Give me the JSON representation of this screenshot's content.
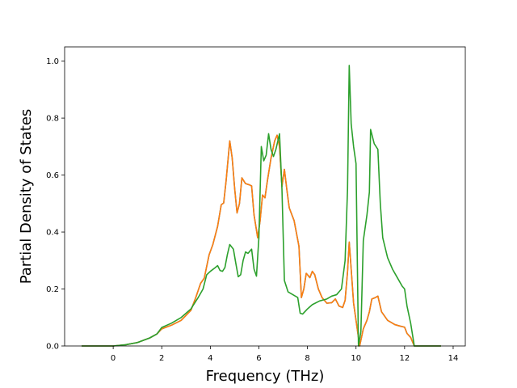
{
  "chart_data": {
    "type": "line",
    "title": "",
    "xlabel": "Frequency (THz)",
    "ylabel": "Partial Density of States",
    "xlim": [
      -2.0,
      14.5
    ],
    "ylim": [
      0.0,
      1.05
    ],
    "xticks": [
      0,
      2,
      4,
      6,
      8,
      10,
      12,
      14
    ],
    "yticks": [
      0.0,
      0.2,
      0.4,
      0.6,
      0.8,
      1.0
    ],
    "x_tick_labels": [
      "0",
      "2",
      "4",
      "6",
      "8",
      "10",
      "12",
      "14"
    ],
    "y_tick_labels": [
      "0.0",
      "0.2",
      "0.4",
      "0.6",
      "0.8",
      "1.0"
    ],
    "grid": false,
    "legend": "none",
    "series": [
      {
        "color": "#1f77b4",
        "points": [
          [
            -1.3,
            0
          ],
          [
            0,
            0
          ],
          [
            0.5,
            0.004
          ],
          [
            1.0,
            0.012
          ],
          [
            1.5,
            0.028
          ],
          [
            1.8,
            0.042
          ],
          [
            2.0,
            0.06
          ],
          [
            2.4,
            0.073
          ],
          [
            2.8,
            0.09
          ],
          [
            3.2,
            0.125
          ],
          [
            3.4,
            0.17
          ],
          [
            3.6,
            0.22
          ],
          [
            3.75,
            0.238
          ],
          [
            3.95,
            0.32
          ],
          [
            4.1,
            0.355
          ],
          [
            4.3,
            0.42
          ],
          [
            4.45,
            0.496
          ],
          [
            4.55,
            0.502
          ],
          [
            4.65,
            0.58
          ],
          [
            4.8,
            0.72
          ],
          [
            4.9,
            0.66
          ],
          [
            5.0,
            0.555
          ],
          [
            5.1,
            0.467
          ],
          [
            5.2,
            0.5
          ],
          [
            5.3,
            0.59
          ],
          [
            5.45,
            0.57
          ],
          [
            5.6,
            0.566
          ],
          [
            5.7,
            0.562
          ],
          [
            5.8,
            0.46
          ],
          [
            5.95,
            0.38
          ],
          [
            6.05,
            0.44
          ],
          [
            6.15,
            0.53
          ],
          [
            6.25,
            0.52
          ],
          [
            6.35,
            0.58
          ],
          [
            6.5,
            0.66
          ],
          [
            6.65,
            0.72
          ],
          [
            6.75,
            0.74
          ],
          [
            6.85,
            0.7
          ],
          [
            6.95,
            0.56
          ],
          [
            7.05,
            0.62
          ],
          [
            7.15,
            0.55
          ],
          [
            7.25,
            0.485
          ],
          [
            7.45,
            0.44
          ],
          [
            7.65,
            0.35
          ],
          [
            7.75,
            0.17
          ],
          [
            7.85,
            0.2
          ],
          [
            7.95,
            0.255
          ],
          [
            8.1,
            0.24
          ],
          [
            8.2,
            0.262
          ],
          [
            8.3,
            0.25
          ],
          [
            8.45,
            0.2
          ],
          [
            8.6,
            0.17
          ],
          [
            8.8,
            0.15
          ],
          [
            9.0,
            0.152
          ],
          [
            9.15,
            0.165
          ],
          [
            9.3,
            0.14
          ],
          [
            9.45,
            0.135
          ],
          [
            9.55,
            0.16
          ],
          [
            9.65,
            0.26
          ],
          [
            9.72,
            0.365
          ],
          [
            9.8,
            0.27
          ],
          [
            9.9,
            0.15
          ],
          [
            10.05,
            0.06
          ],
          [
            10.15,
            0.0
          ],
          [
            10.3,
            0.06
          ],
          [
            10.45,
            0.09
          ],
          [
            10.55,
            0.12
          ],
          [
            10.65,
            0.165
          ],
          [
            10.8,
            0.17
          ],
          [
            10.9,
            0.175
          ],
          [
            11.05,
            0.12
          ],
          [
            11.3,
            0.09
          ],
          [
            11.6,
            0.075
          ],
          [
            11.8,
            0.07
          ],
          [
            12.0,
            0.066
          ],
          [
            12.1,
            0.044
          ],
          [
            12.25,
            0.03
          ],
          [
            12.4,
            0.0
          ],
          [
            13.5,
            0.0
          ]
        ]
      },
      {
        "color": "#ff7f0e",
        "points": [
          [
            -1.3,
            0
          ],
          [
            0,
            0
          ],
          [
            0.5,
            0.004
          ],
          [
            1.0,
            0.012
          ],
          [
            1.5,
            0.028
          ],
          [
            1.8,
            0.042
          ],
          [
            2.0,
            0.06
          ],
          [
            2.4,
            0.073
          ],
          [
            2.8,
            0.09
          ],
          [
            3.2,
            0.125
          ],
          [
            3.4,
            0.17
          ],
          [
            3.6,
            0.22
          ],
          [
            3.75,
            0.238
          ],
          [
            3.95,
            0.32
          ],
          [
            4.1,
            0.355
          ],
          [
            4.3,
            0.42
          ],
          [
            4.45,
            0.496
          ],
          [
            4.55,
            0.502
          ],
          [
            4.65,
            0.58
          ],
          [
            4.8,
            0.72
          ],
          [
            4.9,
            0.66
          ],
          [
            5.0,
            0.555
          ],
          [
            5.1,
            0.467
          ],
          [
            5.2,
            0.5
          ],
          [
            5.3,
            0.59
          ],
          [
            5.45,
            0.57
          ],
          [
            5.6,
            0.566
          ],
          [
            5.7,
            0.562
          ],
          [
            5.8,
            0.46
          ],
          [
            5.95,
            0.38
          ],
          [
            6.05,
            0.44
          ],
          [
            6.15,
            0.53
          ],
          [
            6.25,
            0.52
          ],
          [
            6.35,
            0.58
          ],
          [
            6.5,
            0.66
          ],
          [
            6.65,
            0.72
          ],
          [
            6.75,
            0.74
          ],
          [
            6.85,
            0.7
          ],
          [
            6.95,
            0.56
          ],
          [
            7.05,
            0.62
          ],
          [
            7.15,
            0.55
          ],
          [
            7.25,
            0.485
          ],
          [
            7.45,
            0.44
          ],
          [
            7.65,
            0.35
          ],
          [
            7.75,
            0.17
          ],
          [
            7.85,
            0.2
          ],
          [
            7.95,
            0.255
          ],
          [
            8.1,
            0.24
          ],
          [
            8.2,
            0.262
          ],
          [
            8.3,
            0.25
          ],
          [
            8.45,
            0.2
          ],
          [
            8.6,
            0.17
          ],
          [
            8.8,
            0.15
          ],
          [
            9.0,
            0.152
          ],
          [
            9.15,
            0.165
          ],
          [
            9.3,
            0.14
          ],
          [
            9.45,
            0.135
          ],
          [
            9.55,
            0.16
          ],
          [
            9.65,
            0.26
          ],
          [
            9.72,
            0.365
          ],
          [
            9.8,
            0.27
          ],
          [
            9.9,
            0.15
          ],
          [
            10.05,
            0.06
          ],
          [
            10.15,
            0.0
          ],
          [
            10.3,
            0.06
          ],
          [
            10.45,
            0.09
          ],
          [
            10.55,
            0.12
          ],
          [
            10.65,
            0.165
          ],
          [
            10.8,
            0.17
          ],
          [
            10.9,
            0.175
          ],
          [
            11.05,
            0.12
          ],
          [
            11.3,
            0.09
          ],
          [
            11.6,
            0.075
          ],
          [
            11.8,
            0.07
          ],
          [
            12.0,
            0.066
          ],
          [
            12.1,
            0.044
          ],
          [
            12.25,
            0.03
          ],
          [
            12.4,
            0.0
          ],
          [
            13.5,
            0.0
          ]
        ]
      },
      {
        "color": "#2ca02c",
        "points": [
          [
            -1.3,
            0
          ],
          [
            0,
            0
          ],
          [
            0.5,
            0.004
          ],
          [
            1.0,
            0.012
          ],
          [
            1.5,
            0.028
          ],
          [
            1.8,
            0.042
          ],
          [
            2.0,
            0.065
          ],
          [
            2.4,
            0.08
          ],
          [
            2.8,
            0.1
          ],
          [
            3.2,
            0.13
          ],
          [
            3.5,
            0.17
          ],
          [
            3.7,
            0.2
          ],
          [
            3.85,
            0.25
          ],
          [
            4.0,
            0.262
          ],
          [
            4.2,
            0.275
          ],
          [
            4.3,
            0.282
          ],
          [
            4.4,
            0.265
          ],
          [
            4.5,
            0.262
          ],
          [
            4.6,
            0.275
          ],
          [
            4.7,
            0.32
          ],
          [
            4.8,
            0.356
          ],
          [
            4.95,
            0.34
          ],
          [
            5.05,
            0.29
          ],
          [
            5.15,
            0.243
          ],
          [
            5.25,
            0.25
          ],
          [
            5.35,
            0.3
          ],
          [
            5.45,
            0.33
          ],
          [
            5.55,
            0.325
          ],
          [
            5.7,
            0.34
          ],
          [
            5.8,
            0.27
          ],
          [
            5.9,
            0.245
          ],
          [
            6.0,
            0.38
          ],
          [
            6.1,
            0.7
          ],
          [
            6.2,
            0.65
          ],
          [
            6.3,
            0.67
          ],
          [
            6.4,
            0.745
          ],
          [
            6.5,
            0.69
          ],
          [
            6.6,
            0.665
          ],
          [
            6.7,
            0.69
          ],
          [
            6.85,
            0.745
          ],
          [
            6.95,
            0.55
          ],
          [
            7.05,
            0.23
          ],
          [
            7.2,
            0.19
          ],
          [
            7.4,
            0.18
          ],
          [
            7.6,
            0.17
          ],
          [
            7.7,
            0.115
          ],
          [
            7.8,
            0.112
          ],
          [
            8.0,
            0.13
          ],
          [
            8.2,
            0.145
          ],
          [
            8.5,
            0.158
          ],
          [
            8.8,
            0.165
          ],
          [
            9.0,
            0.175
          ],
          [
            9.2,
            0.18
          ],
          [
            9.4,
            0.2
          ],
          [
            9.55,
            0.3
          ],
          [
            9.65,
            0.55
          ],
          [
            9.72,
            0.985
          ],
          [
            9.8,
            0.78
          ],
          [
            9.9,
            0.7
          ],
          [
            10.0,
            0.64
          ],
          [
            10.1,
            0.0
          ],
          [
            10.2,
            0.05
          ],
          [
            10.3,
            0.37
          ],
          [
            10.45,
            0.46
          ],
          [
            10.55,
            0.54
          ],
          [
            10.6,
            0.76
          ],
          [
            10.75,
            0.71
          ],
          [
            10.9,
            0.69
          ],
          [
            11.0,
            0.5
          ],
          [
            11.1,
            0.38
          ],
          [
            11.3,
            0.31
          ],
          [
            11.5,
            0.27
          ],
          [
            11.7,
            0.24
          ],
          [
            11.9,
            0.21
          ],
          [
            12.0,
            0.2
          ],
          [
            12.1,
            0.14
          ],
          [
            12.25,
            0.08
          ],
          [
            12.4,
            0.0
          ],
          [
            13.5,
            0.0
          ]
        ]
      }
    ]
  }
}
